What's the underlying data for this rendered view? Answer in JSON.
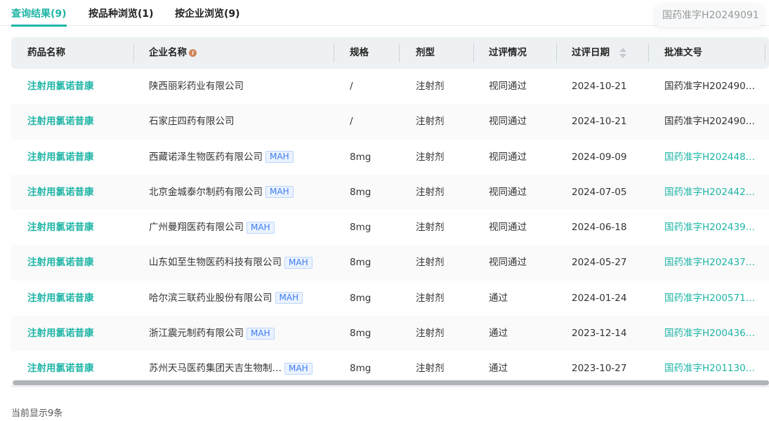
{
  "tabs": [
    {
      "label": "查询结果(9)",
      "active": true
    },
    {
      "label": "按品种浏览(1)"
    },
    {
      "label": "按企业浏览(9)"
    }
  ],
  "columns": [
    "药品名称",
    "企业名称",
    "规格",
    "剂型",
    "过评情况",
    "过评日期",
    "批准文号"
  ],
  "tooltip": "国药准字H20249091",
  "badge": "MAH",
  "rows": [
    {
      "drug": "注射用氯诺昔康",
      "company": "陕西丽彩药业有限公司",
      "mah": false,
      "spec": "/",
      "form": "注射剂",
      "status": "视同通过",
      "date": "2024-10-21",
      "approval": "国药准字H202490…",
      "approval_link": false
    },
    {
      "drug": "注射用氯诺昔康",
      "company": "石家庄四药有限公司",
      "mah": false,
      "spec": "/",
      "form": "注射剂",
      "status": "视同通过",
      "date": "2024-10-21",
      "approval": "国药准字H202490…",
      "approval_link": false
    },
    {
      "drug": "注射用氯诺昔康",
      "company": "西藏诺泽生物医药有限公司",
      "mah": true,
      "spec": "8mg",
      "form": "注射剂",
      "status": "视同通过",
      "date": "2024-09-09",
      "approval": "国药准字H202448…",
      "approval_link": true
    },
    {
      "drug": "注射用氯诺昔康",
      "company": "北京金城泰尔制药有限公司",
      "mah": true,
      "spec": "8mg",
      "form": "注射剂",
      "status": "视同通过",
      "date": "2024-07-05",
      "approval": "国药准字H202442…",
      "approval_link": true
    },
    {
      "drug": "注射用氯诺昔康",
      "company": "广州曼翔医药有限公司",
      "mah": true,
      "spec": "8mg",
      "form": "注射剂",
      "status": "视同通过",
      "date": "2024-06-18",
      "approval": "国药准字H202439…",
      "approval_link": true
    },
    {
      "drug": "注射用氯诺昔康",
      "company": "山东如至生物医药科技有限公司",
      "mah": true,
      "spec": "8mg",
      "form": "注射剂",
      "status": "视同通过",
      "date": "2024-05-27",
      "approval": "国药准字H202437…",
      "approval_link": true
    },
    {
      "drug": "注射用氯诺昔康",
      "company": "哈尔滨三联药业股份有限公司",
      "mah": true,
      "spec": "8mg",
      "form": "注射剂",
      "status": "通过",
      "date": "2024-01-24",
      "approval": "国药准字H200571…",
      "approval_link": true
    },
    {
      "drug": "注射用氯诺昔康",
      "company": "浙江震元制药有限公司",
      "mah": true,
      "spec": "8mg",
      "form": "注射剂",
      "status": "通过",
      "date": "2023-12-14",
      "approval": "国药准字H200436…",
      "approval_link": true
    },
    {
      "drug": "注射用氯诺昔康",
      "company": "苏州天马医药集团天吉生物制…",
      "mah": true,
      "spec": "8mg",
      "form": "注射剂",
      "status": "通过",
      "date": "2023-10-27",
      "approval": "国药准字H201130…",
      "approval_link": true
    }
  ],
  "footer": "当前显示9条",
  "colors": {
    "accent": "#1fb5a6",
    "badge": "#3d7cf0",
    "info": "#d0845a"
  }
}
